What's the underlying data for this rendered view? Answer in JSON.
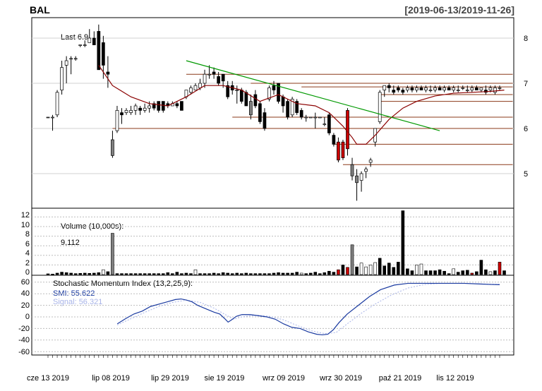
{
  "header": {
    "symbol": "BAL",
    "date_range": "[2019-06-13/2019-11-26]"
  },
  "price_panel": {
    "last_label": "Last 6.9",
    "y_ticks": [
      "8",
      "7",
      "6",
      "5"
    ]
  },
  "volume_panel": {
    "label": "Volume (10,000s):",
    "value": "9,112",
    "y_ticks": [
      "12",
      "10",
      "8",
      "6",
      "4",
      "2",
      "0"
    ]
  },
  "smi_panel": {
    "label": "Stochastic Momentum Index (13,2,25,9):",
    "smi_label": "SMI: 55.622",
    "signal_label": "Signal: 56.321",
    "y_ticks": [
      "60",
      "40",
      "20",
      "0",
      "-20",
      "-40",
      "-60"
    ]
  },
  "x_axis": {
    "ticks": [
      "cze 13 2019",
      "lip 08 2019",
      "lip 29 2019",
      "sie 19 2019",
      "wrz 09 2019",
      "wrz 30 2019",
      "paź 21 2019",
      "lis 12 2019"
    ]
  },
  "colors": {
    "up_candle": "#ffffff",
    "down_candle": "#000000",
    "grey_candle": "#808080",
    "highlight": "#cc0000",
    "ma_line": "#8b0000",
    "trend_line": "#009900",
    "smi_line": "#1a3aa0",
    "signal_line": "#a8b4e8",
    "level_line": "#8b3a1a"
  },
  "chart_data": [
    {
      "type": "candlestick",
      "title": "BAL",
      "x_range": [
        "2019-06-13",
        "2019-11-26"
      ],
      "ylim": [
        4.4,
        8.5
      ],
      "last": 6.9,
      "ohlc": [
        [
          6.25,
          6.25,
          6.25,
          6.25
        ],
        [
          6.25,
          6.3,
          5.95,
          6.25
        ],
        [
          6.3,
          6.85,
          6.25,
          6.8
        ],
        [
          6.85,
          7.5,
          6.75,
          7.35
        ],
        [
          7.4,
          7.6,
          7.0,
          7.5
        ],
        [
          7.55,
          7.6,
          7.2,
          7.55
        ],
        [
          7.55,
          7.6,
          7.5,
          7.55
        ],
        [
          7.85,
          7.85,
          7.8,
          7.85
        ],
        [
          7.85,
          7.95,
          7.8,
          7.85
        ],
        [
          7.9,
          8.2,
          7.9,
          8.0
        ],
        [
          8.0,
          8.15,
          7.85,
          7.85
        ],
        [
          8.15,
          8.3,
          7.3,
          7.3
        ],
        [
          7.9,
          8.05,
          7.1,
          7.4
        ],
        [
          7.25,
          7.6,
          6.9,
          7.2
        ],
        [
          5.75,
          5.95,
          5.35,
          5.4
        ],
        [
          5.95,
          6.5,
          5.9,
          6.4
        ],
        [
          6.35,
          6.45,
          6.1,
          6.3
        ],
        [
          6.35,
          6.45,
          6.3,
          6.4
        ],
        [
          6.35,
          6.5,
          6.3,
          6.4
        ],
        [
          6.4,
          6.55,
          6.3,
          6.5
        ],
        [
          6.45,
          6.5,
          6.3,
          6.4
        ],
        [
          6.4,
          6.55,
          6.35,
          6.45
        ],
        [
          6.45,
          6.6,
          6.35,
          6.5
        ],
        [
          6.55,
          6.6,
          6.4,
          6.45
        ],
        [
          6.6,
          6.6,
          6.35,
          6.4
        ],
        [
          6.6,
          6.6,
          6.35,
          6.4
        ],
        [
          6.55,
          6.6,
          6.45,
          6.5
        ],
        [
          6.5,
          6.6,
          6.5,
          6.55
        ],
        [
          6.55,
          6.6,
          6.45,
          6.5
        ],
        [
          6.6,
          6.6,
          6.4,
          6.4
        ],
        [
          6.7,
          6.85,
          6.65,
          6.85
        ],
        [
          6.8,
          6.95,
          6.75,
          6.9
        ],
        [
          6.85,
          7.0,
          6.85,
          6.95
        ],
        [
          6.9,
          7.1,
          6.85,
          7.0
        ],
        [
          7.0,
          7.3,
          6.9,
          7.2
        ],
        [
          7.2,
          7.4,
          7.1,
          7.2
        ],
        [
          7.25,
          7.35,
          7.1,
          7.2
        ],
        [
          7.15,
          7.25,
          6.95,
          7.0
        ],
        [
          7.2,
          7.2,
          6.9,
          7.05
        ],
        [
          6.95,
          7.05,
          6.65,
          6.7
        ],
        [
          6.95,
          7.05,
          6.75,
          6.85
        ],
        [
          6.85,
          6.95,
          6.55,
          6.85
        ],
        [
          6.85,
          6.9,
          6.55,
          6.6
        ],
        [
          6.8,
          6.85,
          6.5,
          6.5
        ],
        [
          6.6,
          6.75,
          6.2,
          6.3
        ],
        [
          6.75,
          6.85,
          6.45,
          6.5
        ],
        [
          6.55,
          6.6,
          6.1,
          6.15
        ],
        [
          6.35,
          6.45,
          5.95,
          6.0
        ],
        [
          6.65,
          6.95,
          6.6,
          6.9
        ],
        [
          6.95,
          7.05,
          6.75,
          6.85
        ],
        [
          7.0,
          7.0,
          6.55,
          6.6
        ],
        [
          6.7,
          6.75,
          6.35,
          6.5
        ],
        [
          6.6,
          6.65,
          6.2,
          6.25
        ],
        [
          6.3,
          6.7,
          6.25,
          6.65
        ],
        [
          6.6,
          6.65,
          6.3,
          6.35
        ],
        [
          6.4,
          6.45,
          6.2,
          6.25
        ],
        [
          6.25,
          6.3,
          6.15,
          6.25
        ],
        [
          6.25,
          6.25,
          6.25,
          6.25
        ],
        [
          6.25,
          6.35,
          6.0,
          6.25
        ],
        [
          6.25,
          6.25,
          6.25,
          6.25
        ],
        [
          6.1,
          6.25,
          6.05,
          6.1
        ],
        [
          6.3,
          6.35,
          5.85,
          5.9
        ],
        [
          5.85,
          5.9,
          5.6,
          5.65
        ],
        [
          5.7,
          5.8,
          5.25,
          5.3
        ],
        [
          5.7,
          5.75,
          5.3,
          5.35
        ],
        [
          6.4,
          6.45,
          5.4,
          5.55
        ],
        [
          5.2,
          5.35,
          4.85,
          4.95
        ],
        [
          4.95,
          5.1,
          4.4,
          4.8
        ],
        [
          4.85,
          5.05,
          4.6,
          5.0
        ],
        [
          5.05,
          5.15,
          4.9,
          5.1
        ],
        [
          5.25,
          5.35,
          5.15,
          5.3
        ],
        [
          5.7,
          6.0,
          5.6,
          6.0
        ],
        [
          6.15,
          6.85,
          6.1,
          6.8
        ],
        [
          6.85,
          6.95,
          6.7,
          6.95
        ],
        [
          6.95,
          7.0,
          6.8,
          6.9
        ],
        [
          6.85,
          6.95,
          6.75,
          6.8
        ],
        [
          6.9,
          6.95,
          6.8,
          6.85
        ],
        [
          6.85,
          6.9,
          6.75,
          6.8
        ],
        [
          6.85,
          6.95,
          6.8,
          6.9
        ],
        [
          6.9,
          6.95,
          6.8,
          6.85
        ],
        [
          6.85,
          6.95,
          6.8,
          6.9
        ],
        [
          6.9,
          6.95,
          6.85,
          6.85
        ],
        [
          6.85,
          6.95,
          6.8,
          6.9
        ],
        [
          6.85,
          6.95,
          6.8,
          6.85
        ],
        [
          6.85,
          6.95,
          6.8,
          6.9
        ],
        [
          6.9,
          6.95,
          6.85,
          6.85
        ],
        [
          6.85,
          6.95,
          6.8,
          6.9
        ],
        [
          6.9,
          6.95,
          6.85,
          6.85
        ],
        [
          6.85,
          6.95,
          6.8,
          6.9
        ],
        [
          6.85,
          6.95,
          6.8,
          6.85
        ],
        [
          6.9,
          6.95,
          6.85,
          6.9
        ],
        [
          6.85,
          6.95,
          6.8,
          6.85
        ],
        [
          6.85,
          6.95,
          6.8,
          6.9
        ],
        [
          6.9,
          6.95,
          6.85,
          6.85
        ],
        [
          6.85,
          6.9,
          6.8,
          6.9
        ],
        [
          6.85,
          6.95,
          6.75,
          6.8
        ],
        [
          6.85,
          6.95,
          6.8,
          6.9
        ],
        [
          6.8,
          6.95,
          6.75,
          6.9
        ],
        [
          6.9,
          6.95,
          6.85,
          6.9
        ]
      ],
      "grey_bars": [
        0,
        14,
        44,
        66,
        67
      ],
      "red_bars": [
        63,
        64,
        65
      ],
      "moving_average": [
        [
          11,
          7.4
        ],
        [
          14,
          6.95
        ],
        [
          18,
          6.7
        ],
        [
          22,
          6.55
        ],
        [
          26,
          6.5
        ],
        [
          30,
          6.7
        ],
        [
          34,
          6.95
        ],
        [
          38,
          6.95
        ],
        [
          42,
          6.85
        ],
        [
          46,
          6.6
        ],
        [
          50,
          6.75
        ],
        [
          54,
          6.55
        ],
        [
          58,
          6.5
        ],
        [
          61,
          6.35
        ],
        [
          64,
          6.05
        ],
        [
          66,
          5.8
        ],
        [
          67,
          5.65
        ],
        [
          69,
          5.65
        ],
        [
          71,
          5.85
        ],
        [
          74,
          6.2
        ],
        [
          77,
          6.45
        ],
        [
          80,
          6.6
        ],
        [
          84,
          6.72
        ],
        [
          88,
          6.78
        ],
        [
          92,
          6.8
        ],
        [
          96,
          6.82
        ],
        [
          99,
          6.85
        ]
      ],
      "trend_line": {
        "from": [
          30,
          7.5
        ],
        "to": [
          85,
          5.95
        ]
      },
      "levels": [
        {
          "value": 7.2,
          "from": 30,
          "to": 99
        },
        {
          "value": 7.0,
          "from": 44,
          "to": 99
        },
        {
          "value": 6.92,
          "from": 55,
          "to": 99
        },
        {
          "value": 6.75,
          "from": 72,
          "to": 99
        },
        {
          "value": 6.6,
          "from": 72,
          "to": 99
        },
        {
          "value": 6.25,
          "from": 40,
          "to": 99
        },
        {
          "value": 6.0,
          "from": 14,
          "to": 99
        },
        {
          "value": 5.65,
          "from": 62,
          "to": 99
        },
        {
          "value": 5.2,
          "from": 64,
          "to": 99
        }
      ]
    },
    {
      "type": "bar",
      "title": "Volume (10,000s):",
      "ylim": [
        0,
        13.5
      ],
      "values": [
        0.15,
        0.1,
        0.3,
        0.5,
        0.4,
        0.3,
        0.2,
        0.25,
        0.3,
        0.25,
        0.3,
        0.4,
        1.0,
        0.6,
        8.6,
        0.2,
        0.2,
        0.2,
        0.2,
        0.2,
        0.2,
        0.2,
        0.2,
        0.2,
        0.2,
        0.2,
        0.4,
        0.2,
        0.5,
        0.2,
        0.3,
        0.2,
        1.0,
        0.2,
        0.2,
        0.2,
        0.3,
        0.2,
        0.4,
        0.3,
        0.2,
        0.3,
        0.2,
        0.3,
        0.2,
        0.2,
        0.2,
        0.2,
        0.2,
        0.3,
        0.4,
        0.3,
        0.3,
        0.3,
        0.5,
        0.3,
        0.2,
        0.3,
        0.5,
        0.2,
        0.4,
        0.7,
        0.5,
        1.0,
        2.0,
        1.5,
        6.2,
        1.6,
        2.4,
        1.6,
        2.0,
        2.5,
        3.4,
        1.8,
        2.4,
        1.5,
        2.6,
        13.3,
        1.2,
        0.8,
        2.0,
        2.2,
        0.8,
        0.8,
        0.8,
        1.0,
        0.7,
        0.2,
        1.2,
        0.5,
        0.8,
        0.9,
        0.3,
        0.6,
        3.0,
        1.0,
        0.6,
        0.8,
        2.6,
        0.8
      ],
      "grey_bars": [
        14,
        66
      ],
      "red_bars": [
        63,
        65,
        92,
        98
      ],
      "white_bars": [
        12,
        32,
        55,
        66,
        68,
        69,
        70,
        71,
        80,
        81,
        88,
        96
      ]
    },
    {
      "type": "line",
      "title": "Stochastic Momentum Index (13,2,25,9):",
      "ylim": [
        -62,
        65
      ],
      "series": [
        {
          "name": "SMI: 55.622",
          "points": [
            [
              25,
              -12
            ],
            [
              28,
              -3
            ],
            [
              31,
              5
            ],
            [
              34,
              10
            ],
            [
              37,
              18
            ],
            [
              40,
              22
            ],
            [
              43,
              26
            ],
            [
              46,
              30
            ],
            [
              48,
              31
            ],
            [
              50,
              29
            ],
            [
              52,
              26
            ],
            [
              54,
              20
            ],
            [
              57,
              14
            ],
            [
              60,
              8
            ],
            [
              62,
              5
            ],
            [
              64,
              -4
            ],
            [
              65,
              -9
            ],
            [
              66,
              -6
            ],
            [
              68,
              1
            ],
            [
              70,
              4
            ],
            [
              73,
              4
            ],
            [
              76,
              2
            ],
            [
              79,
              0
            ],
            [
              82,
              -4
            ],
            [
              85,
              -12
            ],
            [
              88,
              -18
            ],
            [
              91,
              -20
            ],
            [
              94,
              -26
            ],
            [
              97,
              -30
            ],
            [
              99,
              -31
            ],
            [
              101,
              -30
            ],
            [
              103,
              -22
            ],
            [
              105,
              -10
            ],
            [
              108,
              5
            ],
            [
              112,
              20
            ],
            [
              116,
              35
            ],
            [
              120,
              47
            ],
            [
              125,
              55
            ],
            [
              130,
              58
            ],
            [
              135,
              58
            ],
            [
              140,
              58
            ],
            [
              145,
              58
            ],
            [
              150,
              58
            ],
            [
              155,
              57
            ],
            [
              160,
              56
            ],
            [
              163,
              55.6
            ]
          ]
        },
        {
          "name": "Signal: 56.321",
          "points": [
            [
              25,
              -14
            ],
            [
              30,
              -3
            ],
            [
              35,
              8
            ],
            [
              40,
              18
            ],
            [
              45,
              25
            ],
            [
              50,
              29
            ],
            [
              55,
              25
            ],
            [
              60,
              15
            ],
            [
              64,
              4
            ],
            [
              67,
              -4
            ],
            [
              70,
              0
            ],
            [
              75,
              3
            ],
            [
              80,
              1
            ],
            [
              85,
              -5
            ],
            [
              90,
              -15
            ],
            [
              95,
              -24
            ],
            [
              100,
              -29
            ],
            [
              104,
              -27
            ],
            [
              108,
              -12
            ],
            [
              113,
              6
            ],
            [
              118,
              22
            ],
            [
              124,
              38
            ],
            [
              130,
              50
            ],
            [
              136,
              56
            ],
            [
              142,
              58
            ],
            [
              150,
              58
            ],
            [
              156,
              57
            ],
            [
              163,
              56.3
            ]
          ]
        }
      ]
    }
  ]
}
